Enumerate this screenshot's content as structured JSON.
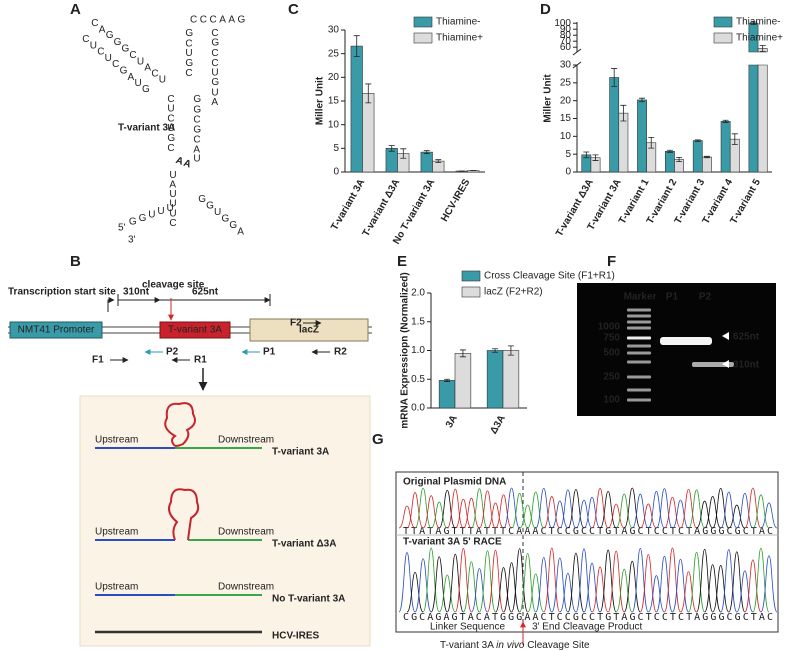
{
  "panel_labels": [
    "A",
    "B",
    "C",
    "D",
    "E",
    "F",
    "G"
  ],
  "structure": {
    "name": "T-variant 3A",
    "strands": [
      "CAGGGCUACU",
      "CUCUCGAUG",
      "CCCAAG",
      "GCUGC",
      "CGCCUGUA",
      "CUCUGC",
      "GGCGCAU",
      "UAUUUC",
      "GGUGGA",
      "GGUUU"
    ],
    "cleavage": "AA",
    "five_prime": "5'",
    "three_prime": "3'"
  },
  "construct": {
    "tss": "Transcription start site",
    "len1": "310nt",
    "len2": "625nt",
    "cleavage": "cleavage site",
    "promoter": "NMT41 Promoter",
    "element": "T-variant 3A",
    "gene": "lacZ",
    "primers": [
      "F2",
      "F1",
      "P2",
      "P1",
      "R1",
      "R2"
    ],
    "constructs": [
      {
        "up": "Upstream",
        "down": "Downstream",
        "name": "T-variant 3A"
      },
      {
        "up": "Upstream",
        "down": "Downstream",
        "name": "T-variant Δ3A"
      },
      {
        "up": "Upstream",
        "down": "Downstream",
        "name": "No T-variant 3A"
      },
      {
        "name": "HCV-IRES"
      }
    ]
  },
  "chart_data": [
    {
      "type": "bar",
      "y_label": "Miller Unit",
      "categories": [
        "T-variant 3A",
        "T-variant Δ3A",
        "No T-variant 3A",
        "HCV-IRES"
      ],
      "series": [
        {
          "name": "Thiamine-",
          "color": "#3a9ba8",
          "values": [
            26.6,
            5.0,
            4.2,
            0.2
          ],
          "errors": [
            2.2,
            0.6,
            0.3,
            0
          ]
        },
        {
          "name": "Thiamine+",
          "color": "#dcdcdc",
          "values": [
            16.6,
            3.9,
            2.3,
            0.3
          ],
          "errors": [
            2.0,
            1.0,
            0.3,
            0
          ]
        }
      ],
      "ylim": [
        0,
        30
      ],
      "yticks": [
        0,
        5,
        10,
        15,
        20,
        25,
        30
      ]
    },
    {
      "type": "bar",
      "y_label": "Miller Unit",
      "categories": [
        "T-variant Δ3A",
        "T-variant 3A",
        "T-variant 1",
        "T-variant 2",
        "T-variant 3",
        "T-variant 4",
        "T-variant 5"
      ],
      "series": [
        {
          "name": "Thiamine-",
          "color": "#3a9ba8",
          "values": [
            4.8,
            26.5,
            20.2,
            5.8,
            8.8,
            14.2,
            100
          ],
          "errors": [
            0.8,
            2.5,
            0.5,
            0.3,
            0.2,
            0.3,
            2
          ]
        },
        {
          "name": "Thiamine+",
          "color": "#dcdcdc",
          "values": [
            4.0,
            16.5,
            8.2,
            3.5,
            4.2,
            9.2,
            58
          ],
          "errors": [
            0.8,
            2.2,
            1.5,
            0.6,
            0.2,
            1.5,
            5
          ]
        }
      ],
      "ylim": [
        0,
        30
      ],
      "yticks": [
        0,
        5,
        10,
        15,
        20,
        25,
        30
      ],
      "axis_break": true,
      "ylim_upper": [
        52,
        102
      ],
      "yticks_upper": [
        60,
        70,
        80,
        90,
        100
      ]
    },
    {
      "type": "bar",
      "y_label": "mRNA Expressiopn (Normalized)",
      "categories": [
        "3A",
        "Δ3A"
      ],
      "series": [
        {
          "name": "Cross Cleavage Site (F1+R1)",
          "color": "#3a9ba8",
          "values": [
            0.48,
            1.0
          ],
          "errors": [
            0.02,
            0.03
          ]
        },
        {
          "name": "lacZ (F2+R2)",
          "color": "#dcdcdc",
          "values": [
            0.95,
            1.0
          ],
          "errors": [
            0.06,
            0.08
          ]
        }
      ],
      "ylim": [
        0,
        2
      ],
      "yticks": [
        {
          "value": 0,
          "label": "0.0"
        },
        0.5,
        {
          "value": 1,
          "label": "1.0"
        },
        1.5,
        {
          "value": 2,
          "label": "2.0"
        }
      ]
    }
  ],
  "gel": {
    "lanes": [
      "Marker",
      "P1",
      "P2"
    ],
    "ladder": [
      "1000",
      "750",
      "500",
      "250",
      "100"
    ],
    "bands": [
      "625nt",
      "310nt"
    ]
  },
  "sequencing": {
    "tracks": [
      {
        "title": "Original Plasmid DNA",
        "sequence": "TTATAGTTTATTTCAAACTCCGCCTGTAGCTCCTCTAGGGCGCTAC"
      },
      {
        "title": "T-variant 3A 5' RACE",
        "sequence": "CGCAGAGTACATGGGAACTCCGCCTGTAGCTCCTCTAGGGCGCTAC"
      }
    ],
    "regions": [
      "Linker Sequence",
      "3' End Cleavage Product"
    ],
    "site": [
      "T-variant 3A ",
      "in vivo",
      " Cleavage Site"
    ]
  }
}
